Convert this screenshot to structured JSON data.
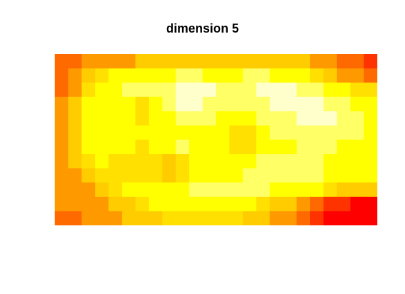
{
  "chart_data": {
    "type": "heatmap",
    "title": "dimension 5",
    "xlabel": "",
    "ylabel": "",
    "axes_shown": false,
    "grid": false,
    "legend": "none",
    "palette": [
      "#FF0000",
      "#FF3300",
      "#FF6A00",
      "#FF9900",
      "#FFCC00",
      "#FFE000",
      "#FFFF00",
      "#FFFF66",
      "#FFFFCC"
    ],
    "levels": [
      0,
      1,
      2,
      3,
      4,
      5,
      6,
      7,
      8
    ],
    "grid_size": {
      "columns": 24,
      "rows": 12
    },
    "values": [
      [
        2,
        2,
        3,
        3,
        3,
        3,
        4,
        4,
        4,
        4,
        4,
        4,
        4,
        4,
        4,
        4,
        4,
        4,
        4,
        3,
        3,
        2,
        2,
        1
      ],
      [
        2,
        3,
        4,
        5,
        6,
        6,
        6,
        6,
        6,
        7,
        7,
        6,
        6,
        6,
        7,
        7,
        6,
        6,
        6,
        5,
        4,
        3,
        3,
        2
      ],
      [
        2,
        3,
        5,
        6,
        6,
        7,
        7,
        7,
        7,
        8,
        8,
        8,
        7,
        7,
        7,
        8,
        8,
        8,
        7,
        7,
        6,
        6,
        5,
        5
      ],
      [
        3,
        4,
        6,
        6,
        6,
        6,
        5,
        6,
        7,
        8,
        8,
        7,
        7,
        7,
        7,
        7,
        8,
        8,
        8,
        8,
        7,
        7,
        6,
        6
      ],
      [
        3,
        4,
        6,
        6,
        6,
        6,
        5,
        6,
        6,
        7,
        7,
        7,
        6,
        6,
        6,
        7,
        7,
        7,
        8,
        8,
        8,
        7,
        7,
        6
      ],
      [
        3,
        4,
        6,
        6,
        6,
        6,
        6,
        6,
        6,
        6,
        6,
        6,
        6,
        5,
        5,
        6,
        7,
        7,
        7,
        7,
        7,
        7,
        7,
        6
      ],
      [
        3,
        4,
        6,
        6,
        6,
        6,
        5,
        6,
        6,
        7,
        6,
        6,
        6,
        5,
        5,
        6,
        6,
        6,
        7,
        7,
        7,
        6,
        6,
        6
      ],
      [
        3,
        4,
        5,
        6,
        5,
        5,
        5,
        5,
        4,
        5,
        6,
        6,
        6,
        6,
        6,
        7,
        7,
        7,
        7,
        7,
        6,
        6,
        6,
        6
      ],
      [
        3,
        3,
        4,
        5,
        5,
        5,
        5,
        5,
        4,
        5,
        6,
        6,
        6,
        6,
        7,
        7,
        7,
        7,
        7,
        7,
        6,
        6,
        6,
        6
      ],
      [
        3,
        3,
        3,
        4,
        5,
        6,
        6,
        6,
        6,
        6,
        7,
        7,
        7,
        7,
        7,
        7,
        6,
        6,
        6,
        6,
        5,
        4,
        4,
        4
      ],
      [
        3,
        3,
        3,
        3,
        4,
        4,
        5,
        6,
        6,
        6,
        6,
        6,
        6,
        6,
        6,
        5,
        4,
        4,
        3,
        2,
        1,
        1,
        0,
        0
      ],
      [
        2,
        2,
        3,
        3,
        3,
        4,
        4,
        4,
        5,
        5,
        5,
        5,
        5,
        5,
        4,
        4,
        3,
        3,
        2,
        1,
        0,
        0,
        0,
        0
      ]
    ]
  }
}
